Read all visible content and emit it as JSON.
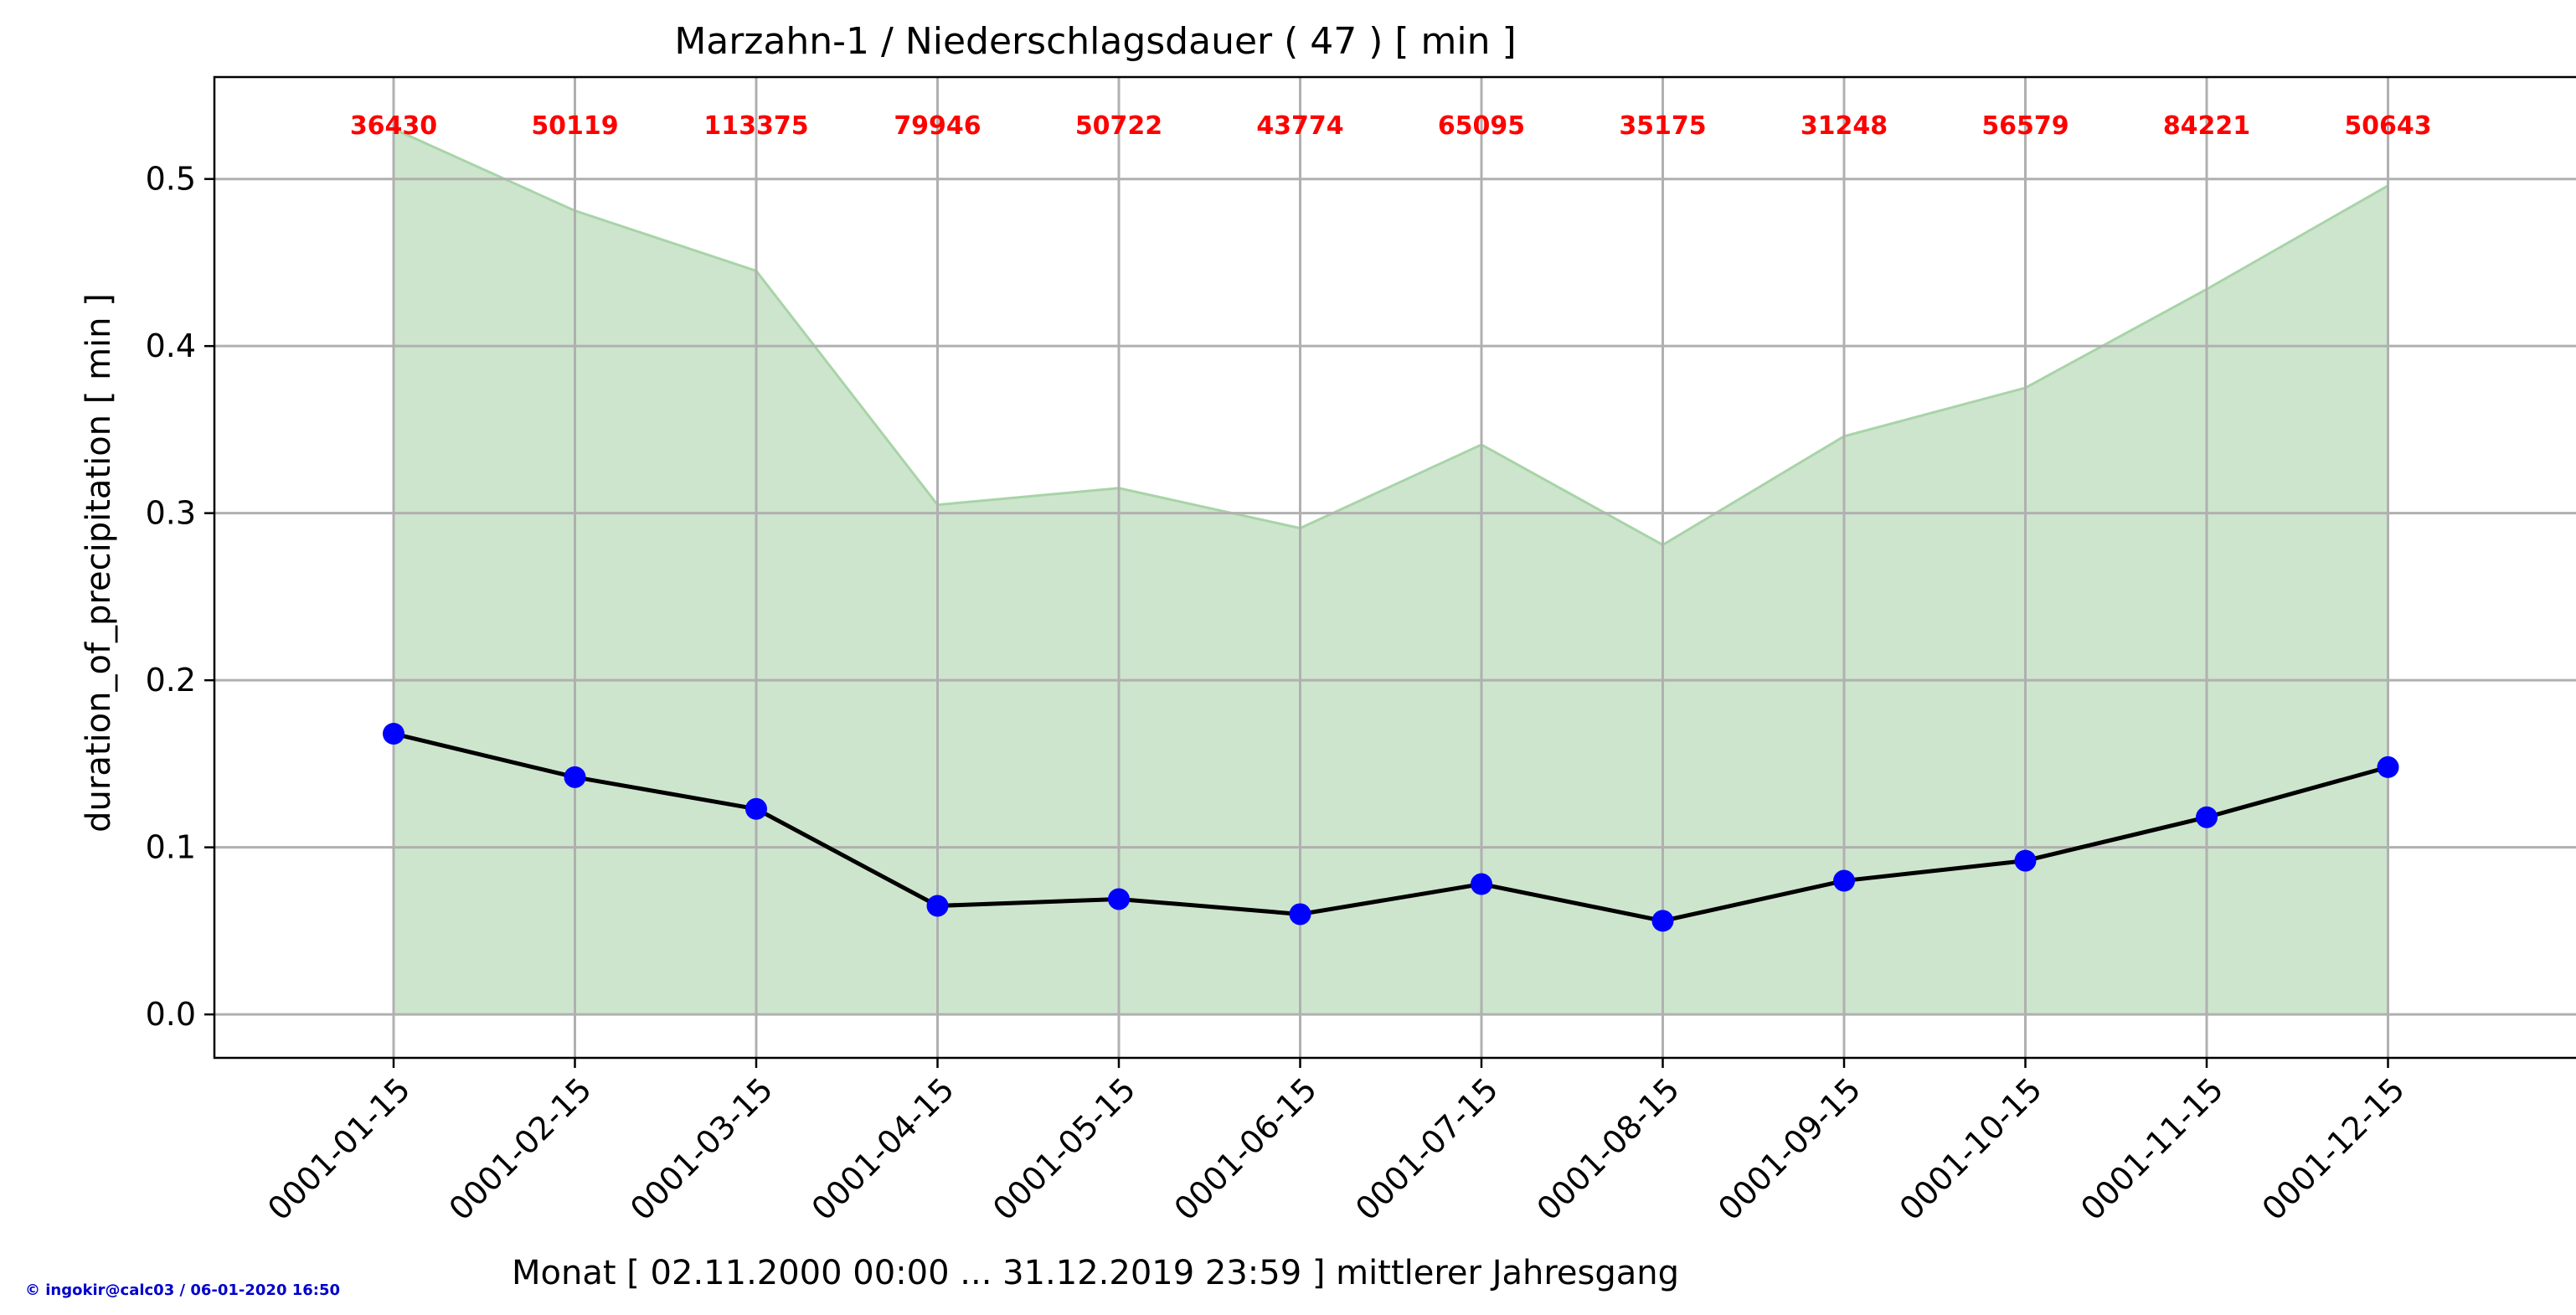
{
  "chart_data": {
    "type": "line",
    "title": "Marzahn-1 / Niederschlagsdauer ( 47 ) [ min ]",
    "xlabel": "Monat [ 02.11.2000 00:00 ... 31.12.2019 23:59 ] mittlerer Jahresgang",
    "ylabel": "duration_of_precipitation [ min ]",
    "categories": [
      "0001-01-15",
      "0001-02-15",
      "0001-03-15",
      "0001-04-15",
      "0001-05-15",
      "0001-06-15",
      "0001-07-15",
      "0001-08-15",
      "0001-09-15",
      "0001-10-15",
      "0001-11-15",
      "0001-12-15"
    ],
    "series": [
      {
        "values": [
          0.168,
          0.142,
          0.123,
          0.065,
          0.069,
          0.06,
          0.078,
          0.056,
          0.08,
          0.092,
          0.118,
          0.148
        ],
        "color": "#0000ff",
        "line_color": "#000000"
      }
    ],
    "band": {
      "upper": [
        0.53,
        0.481,
        0.445,
        0.305,
        0.315,
        0.291,
        0.341,
        0.281,
        0.346,
        0.375,
        0.434,
        0.496
      ],
      "lower": [
        0,
        0,
        0,
        0,
        0,
        0,
        0,
        0,
        0,
        0,
        0,
        0
      ],
      "fill_color": "#cde5cd",
      "edge_color": "#a8d4a8"
    },
    "counts": [
      "36430",
      "50119",
      "113375",
      "79946",
      "50722",
      "43774",
      "65095",
      "35175",
      "31248",
      "56579",
      "84221",
      "50643"
    ],
    "counts_color": "#ff0000",
    "yticks": [
      "0.0",
      "0.1",
      "0.2",
      "0.3",
      "0.4",
      "0.5"
    ],
    "ylim": [
      -0.026,
      0.561
    ],
    "grid": true
  },
  "footer": {
    "credit": "© ingokir@calc03 / 06-01-2020 16:50"
  }
}
